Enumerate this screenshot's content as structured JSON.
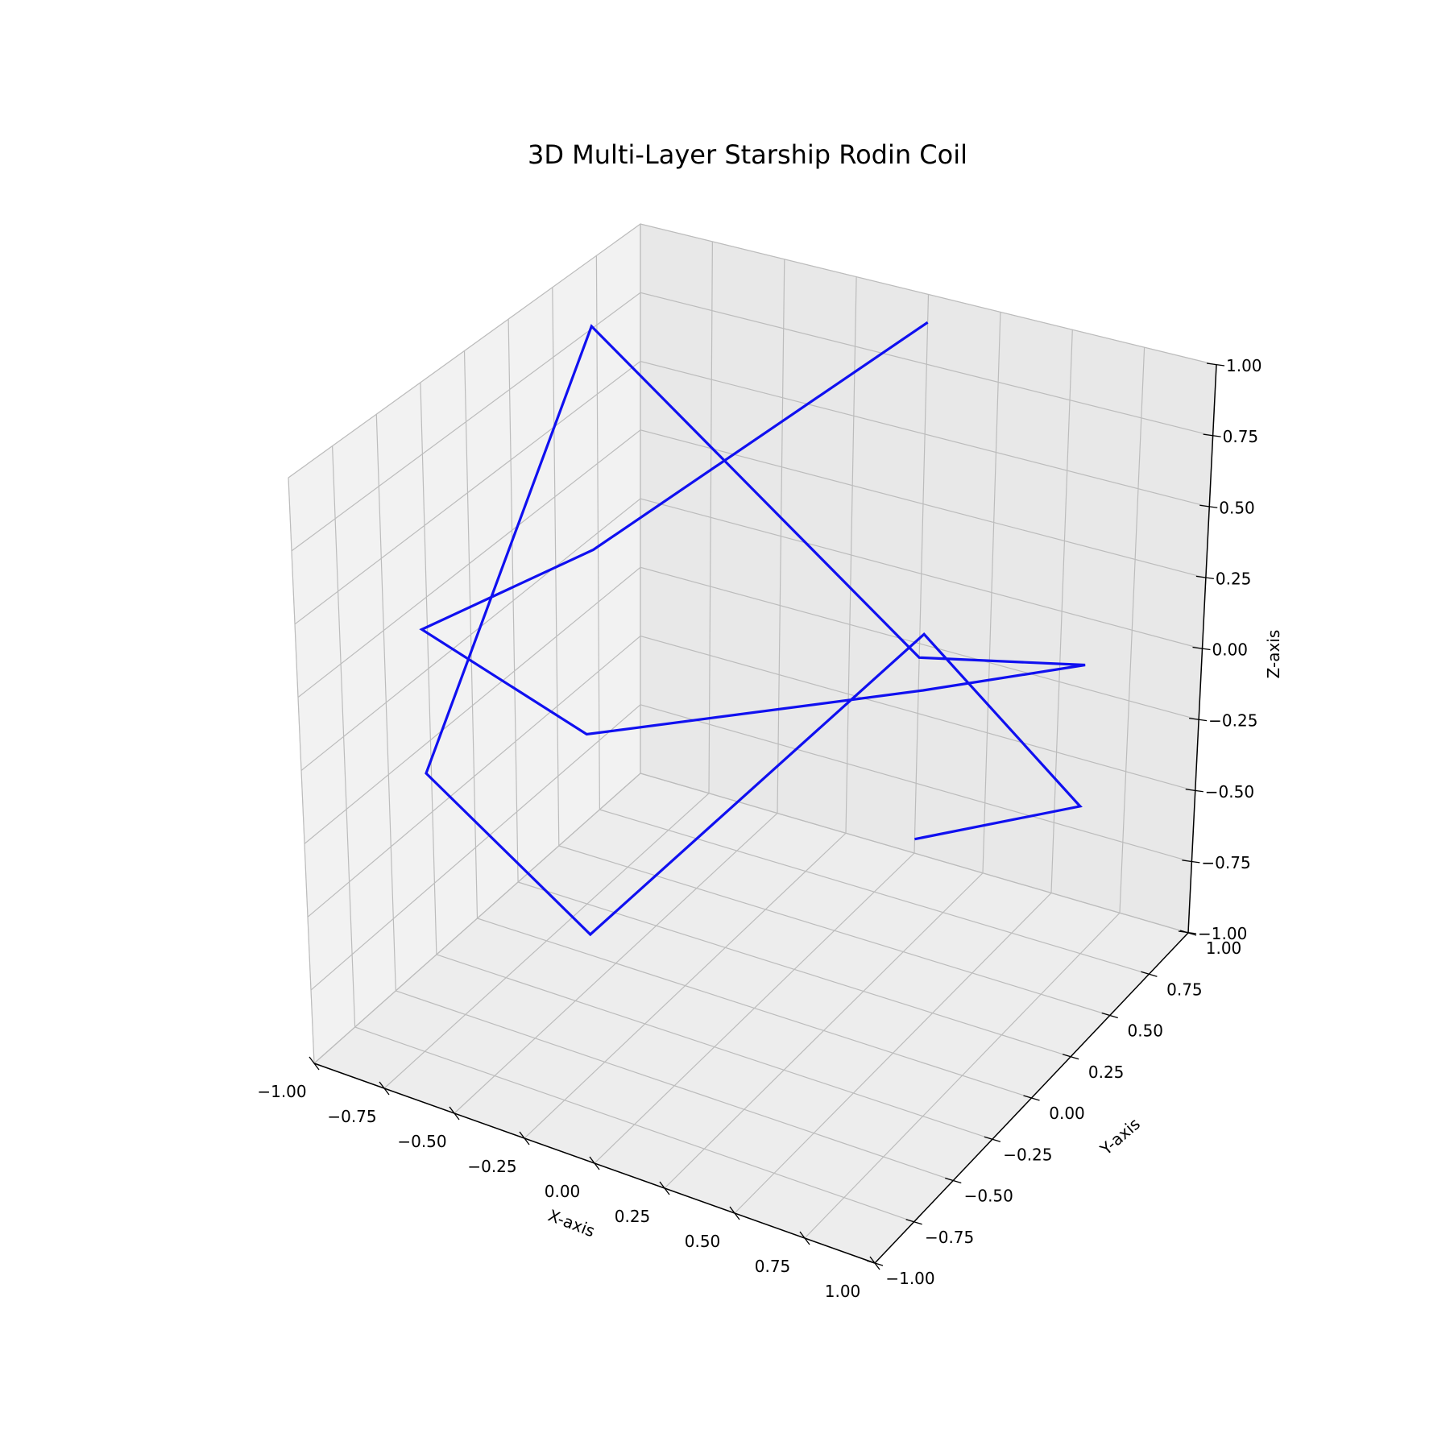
{
  "chart_data": {
    "type": "line",
    "projection": "3d",
    "title": "3D Multi-Layer Starship Rodin Coil",
    "xlabel": "X-axis",
    "ylabel": "Y-axis",
    "zlabel": "Z-axis",
    "xlim": [
      -1,
      1
    ],
    "ylim": [
      -1,
      1
    ],
    "zlim": [
      -1,
      1
    ],
    "ticks": [
      -1.0,
      -0.75,
      -0.5,
      -0.25,
      0.0,
      0.25,
      0.5,
      0.75,
      1.0
    ],
    "tick_labels": [
      "−1.00",
      "−0.75",
      "−0.50",
      "−0.25",
      "0.00",
      "0.25",
      "0.50",
      "0.75",
      "1.00"
    ],
    "grid": true,
    "line_color": "#1010f0",
    "series": [
      {
        "x": [
          0.0,
          0.866,
          0.866,
          0.0,
          -0.866,
          -0.866,
          0.0,
          0.866,
          0.866,
          0.0,
          -0.866,
          -0.866,
          0.0
        ],
        "y": [
          1.0,
          0.5,
          -0.5,
          -1.0,
          -0.5,
          0.5,
          1.0,
          0.5,
          -0.5,
          -1.0,
          -0.5,
          0.5,
          1.0
        ],
        "z": [
          -0.95,
          -0.3,
          0.9,
          -0.2,
          -0.2,
          0.9,
          -0.3,
          0.2,
          0.7,
          0.5,
          0.3,
          0.1,
          0.9
        ]
      }
    ]
  },
  "theme": {
    "pane_left": "#f2f2f2",
    "pane_right": "#e8e8e8",
    "pane_floor": "#ededed",
    "grid": "#bcbcbc",
    "axis_line": "#000000",
    "pane_edge": "#d8d8d8"
  }
}
